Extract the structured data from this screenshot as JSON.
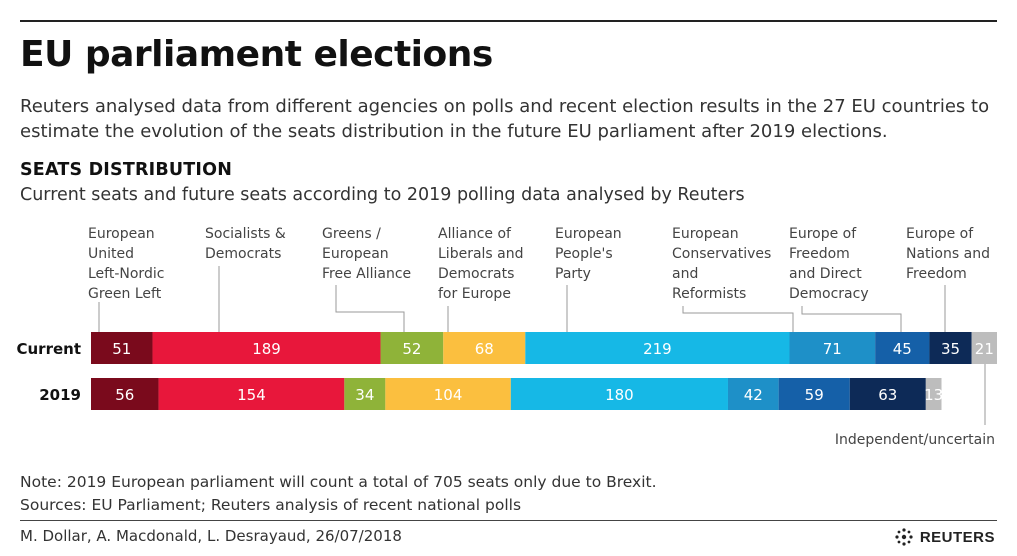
{
  "header": {
    "title": "EU parliament elections",
    "subtitle": "Reuters analysed data from different agencies on polls and recent election results in the 27 EU countries to estimate the evolution of the seats distribution in the future EU parliament after 2019 elections.",
    "section_title": "SEATS DISTRIBUTION",
    "section_subtitle": "Current seats and future seats according to 2019 polling data analysed by Reuters"
  },
  "chart_data": {
    "type": "bar",
    "orientation": "horizontal-stacked",
    "categories": [
      "Current",
      "2019"
    ],
    "series": [
      {
        "name": "European United Left-Nordic Green Left",
        "label_lines": [
          "European",
          "United",
          "Left-Nordic",
          "Green Left"
        ],
        "color": "#7a0a1c",
        "values": [
          51,
          56
        ]
      },
      {
        "name": "Socialists & Democrats",
        "label_lines": [
          "Socialists &",
          "Democrats"
        ],
        "color": "#e8173b",
        "values": [
          189,
          154
        ]
      },
      {
        "name": "Greens / European Free Alliance",
        "label_lines": [
          "Greens /",
          "European",
          "Free Alliance"
        ],
        "color": "#8fb339",
        "values": [
          52,
          34
        ]
      },
      {
        "name": "Alliance of Liberals and Democrats for Europe",
        "label_lines": [
          "Alliance of",
          "Liberals and",
          "Democrats",
          "for Europe"
        ],
        "color": "#fbbf3f",
        "values": [
          68,
          104
        ]
      },
      {
        "name": "European People's Party",
        "label_lines": [
          "European",
          "People's",
          "Party"
        ],
        "color": "#16b8e6",
        "values": [
          219,
          180
        ]
      },
      {
        "name": "European Conservatives and Reformists",
        "label_lines": [
          "European",
          "Conservatives",
          "and",
          "Reformists"
        ],
        "color": "#1e90c8",
        "values": [
          71,
          42
        ]
      },
      {
        "name": "Europe of Freedom and Direct Democracy",
        "label_lines": [
          "Europe of",
          "Freedom",
          "and Direct",
          "Democracy"
        ],
        "color": "#1560a8",
        "values": [
          45,
          59
        ]
      },
      {
        "name": "Europe of Nations and Freedom",
        "label_lines": [
          "Europe of",
          "Nations and",
          "Freedom"
        ],
        "color": "#0d2a57",
        "values": [
          35,
          63
        ]
      },
      {
        "name": "Independent/uncertain",
        "label_lines": [
          "Independent/uncertain"
        ],
        "color": "#bdbdbd",
        "values": [
          21,
          13
        ]
      }
    ]
  },
  "notes": {
    "note": "Note: 2019 European parliament will count a total of 705 seats only due to Brexit.",
    "sources": "Sources: EU Parliament; Reuters analysis of recent national polls"
  },
  "footer": {
    "credit": "M. Dollar, A. Macdonald, L. Desrayaud, 26/07/2018",
    "logo_text": "REUTERS",
    "logo_icon": "reuters-logo-icon"
  }
}
